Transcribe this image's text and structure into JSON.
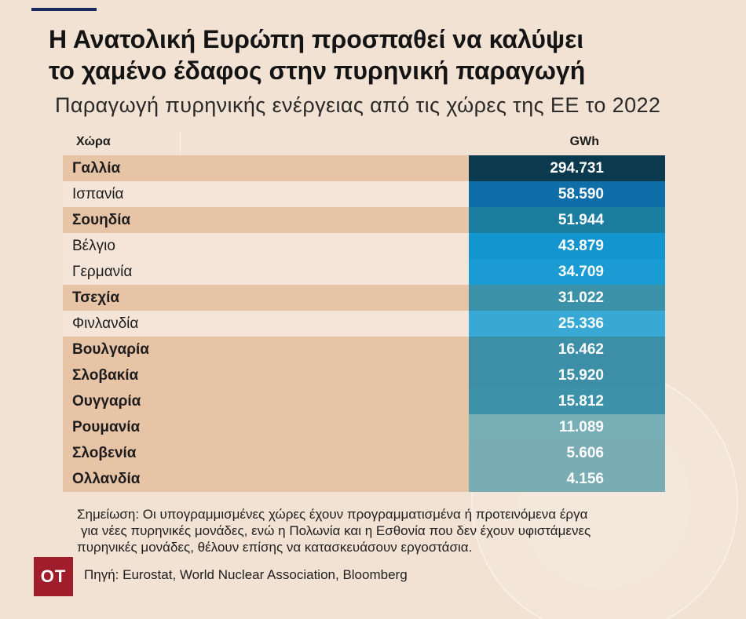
{
  "colors": {
    "background": "#f2e2d3",
    "accent_bar": "#1b2a5c",
    "row_highlight": "#e8c4a7",
    "row_normal": "#f5e5d8",
    "logo": "#a01d2b"
  },
  "chart_data": {
    "type": "table",
    "title_lines": [
      "Η Ανατολική Ευρώπη προσπαθεί να καλύψει",
      "το χαμένο έδαφος στην πυρηνική παραγωγή"
    ],
    "subtitle": "Παραγωγή πυρηνικής ενέργειας από τις χώρες της ΕΕ το 2022",
    "columns": [
      "Χώρα",
      "GWh"
    ],
    "categories": [
      "Γαλλία",
      "Ισπανία",
      "Σουηδία",
      "Βέλγιο",
      "Γερμανία",
      "Τσεχία",
      "Φινλανδία",
      "Βουλγαρία",
      "Σλοβακία",
      "Ουγγαρία",
      "Ρουμανία",
      "Σλοβενία",
      "Ολλανδία"
    ],
    "values": [
      294731,
      58590,
      51944,
      43879,
      34709,
      31022,
      25336,
      16462,
      15920,
      15812,
      11089,
      5606,
      4156
    ],
    "value_labels": [
      "294.731",
      "58.590",
      "51.944",
      "43.879",
      "34.709",
      "31.022",
      "25.336",
      "16.462",
      "15.920",
      "15.812",
      "11.089",
      "5.606",
      "4.156"
    ],
    "highlighted": [
      true,
      false,
      true,
      false,
      false,
      true,
      false,
      true,
      true,
      true,
      true,
      true,
      true
    ],
    "cell_colors": [
      "#0b3a4e",
      "#0f6ea7",
      "#1b7ea1",
      "#1395d0",
      "#1a9bd3",
      "#3b91a7",
      "#37a9d4",
      "#3c8fa6",
      "#3c8fa6",
      "#3d91a8",
      "#78aeb6",
      "#7aacb3",
      "#79acb3"
    ]
  },
  "note": {
    "lines": [
      "Σημείωση: Οι υπογραμμισμένες χώρες έχουν προγραμματισμένα ή προτεινόμενα έργα",
      "για νέες πυρηνικές μονάδες, ενώ η Πολωνία και η Εσθονία που δεν έχουν υφιστάμενες",
      "πυρηνικές μονάδες, θέλουν επίσης να κατασκευάσουν εργοστάσια."
    ]
  },
  "source": "Πηγή: Eurostat, World Nuclear Association, Bloomberg",
  "logo": {
    "text": "OT"
  }
}
